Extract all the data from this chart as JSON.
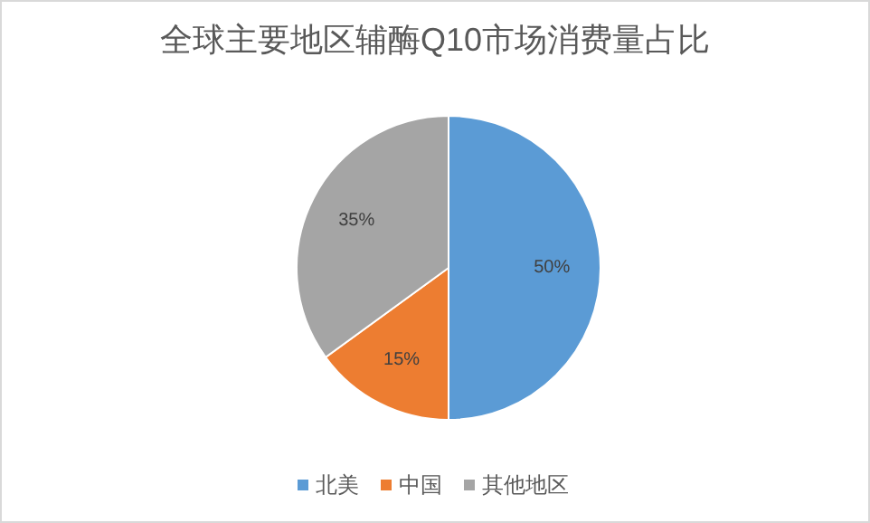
{
  "chart_data": {
    "type": "pie",
    "title": "全球主要地区辅酶Q10市场消费量占比",
    "categories": [
      "北美",
      "中国",
      "其他地区"
    ],
    "values": [
      50,
      15,
      35
    ],
    "colors": [
      "#5b9bd5",
      "#ed7d31",
      "#a5a5a5"
    ],
    "value_labels": [
      "50%",
      "15%",
      "35%"
    ],
    "legend": "bottom"
  }
}
